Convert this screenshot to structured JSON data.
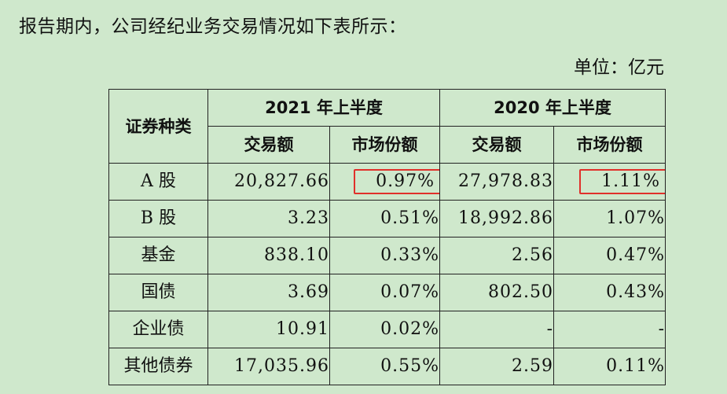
{
  "intro_text": "报告期内，公司经纪业务交易情况如下表所示：",
  "unit_text": "单位：亿元",
  "table": {
    "col_category": "证券种类",
    "period_1": "2021 年上半度",
    "period_2": "2020 年上半度",
    "sub_amount": "交易额",
    "sub_share": "市场份额",
    "rows": [
      {
        "category": "A 股",
        "amount_1": "20,827.66",
        "share_1": "0.97%",
        "amount_2": "27,978.83",
        "share_2": "1.11%"
      },
      {
        "category": "B 股",
        "amount_1": "3.23",
        "share_1": "0.51%",
        "amount_2": "18,992.86",
        "share_2": "1.07%"
      },
      {
        "category": "基金",
        "amount_1": "838.10",
        "share_1": "0.33%",
        "amount_2": "2.56",
        "share_2": "0.47%"
      },
      {
        "category": "国债",
        "amount_1": "3.69",
        "share_1": "0.07%",
        "amount_2": "802.50",
        "share_2": "0.43%"
      },
      {
        "category": "企业债",
        "amount_1": "10.91",
        "share_1": "0.02%",
        "amount_2": "-",
        "share_2": "-"
      },
      {
        "category": "其他债券",
        "amount_1": "17,035.96",
        "share_1": "0.55%",
        "amount_2": "2.59",
        "share_2": "0.11%"
      }
    ]
  },
  "highlight_color": "#e0302a"
}
